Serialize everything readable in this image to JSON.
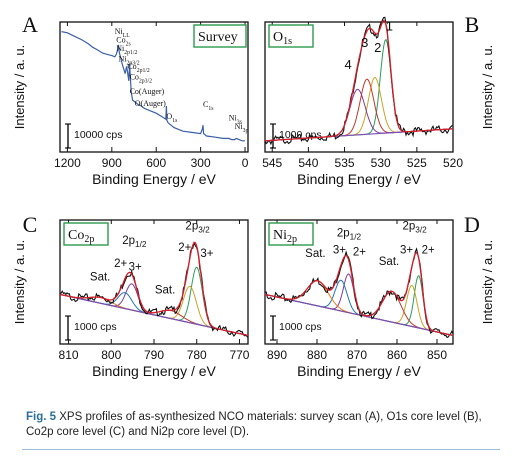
{
  "caption": {
    "label": "Fig. 5",
    "text": "XPS profiles of as-synthesized NCO materials: survey scan (A), O1s core level (B), Co2p core level (C) and Ni2p core level (D)."
  },
  "colors": {
    "survey": "#3a5fa8",
    "data": "#111111",
    "fit_envelope": "#d2202a",
    "baseline": "#7b4fb8",
    "box": "#2e9a4e",
    "peak_colors": [
      "#2f9d5b",
      "#c9a227",
      "#c0392b",
      "#7d3c98",
      "#1f77b4",
      "#e67e22"
    ]
  },
  "chart_data": [
    {
      "panel_letter": "A",
      "type": "line",
      "title": "Survey",
      "xlabel": "Binding Energy / eV",
      "ylabel": "Intensity / a. u.",
      "xlim": [
        1250,
        -20
      ],
      "xticks": [
        1200,
        900,
        600,
        300,
        0
      ],
      "scale_label": "10000 cps",
      "series": [
        {
          "x": [
            1240,
            1200,
            1150,
            1100,
            1060,
            1030,
            1000,
            960,
            930,
            900,
            880,
            870,
            860,
            855,
            850,
            830,
            810,
            800,
            795,
            785,
            780,
            770,
            760,
            740,
            720,
            700,
            680,
            640,
            600,
            560,
            535,
            531,
            528,
            520,
            480,
            420,
            360,
            300,
            288,
            284,
            280,
            260,
            200,
            150,
            120,
            110,
            90,
            70,
            60,
            40,
            20,
            0
          ],
          "y": [
            0.97,
            0.96,
            0.93,
            0.9,
            0.87,
            0.84,
            0.82,
            0.79,
            0.78,
            0.77,
            0.76,
            0.78,
            0.82,
            0.86,
            0.8,
            0.7,
            0.62,
            0.68,
            0.64,
            0.56,
            0.7,
            0.48,
            0.4,
            0.38,
            0.36,
            0.35,
            0.33,
            0.31,
            0.29,
            0.26,
            0.24,
            0.35,
            0.23,
            0.21,
            0.17,
            0.14,
            0.13,
            0.12,
            0.16,
            0.19,
            0.12,
            0.1,
            0.09,
            0.08,
            0.08,
            0.08,
            0.07,
            0.07,
            0.08,
            0.07,
            0.06,
            0.06
          ]
        }
      ],
      "annotations": [
        {
          "text": "Ni",
          "sub": "LL",
          "x": 880,
          "y": 0.95
        },
        {
          "text": "Co",
          "sub": "2s",
          "x": 870,
          "y": 0.88
        },
        {
          "text": "Ni",
          "sub": "2p1/2",
          "x": 870,
          "y": 0.81
        },
        {
          "text": "Ni",
          "sub": "2p3/2",
          "x": 855,
          "y": 0.72
        },
        {
          "text": "Co",
          "sub": "2p1/2",
          "x": 795,
          "y": 0.66
        },
        {
          "text": "Co",
          "sub": "2p3/2",
          "x": 780,
          "y": 0.57
        },
        {
          "text": "Co(Auger)",
          "sub": "",
          "x": 780,
          "y": 0.45
        },
        {
          "text": "O(Auger)",
          "sub": "",
          "x": 745,
          "y": 0.35
        },
        {
          "text": "O",
          "sub": "1s",
          "x": 531,
          "y": 0.24
        },
        {
          "text": "C",
          "sub": "1s",
          "x": 284,
          "y": 0.34
        },
        {
          "text": "Ni",
          "sub": "3s",
          "x": 110,
          "y": 0.23
        },
        {
          "text": "Ni",
          "sub": "3p",
          "x": 70,
          "y": 0.16
        }
      ]
    },
    {
      "panel_letter": "B",
      "type": "line",
      "title": "O",
      "title_sub": "1s",
      "xlabel": "Binding Energy / eV",
      "ylabel": "Intensity / a. u.",
      "xlim": [
        546,
        520
      ],
      "xticks": [
        545,
        540,
        535,
        530,
        525,
        520
      ],
      "scale_label": "1000 cps",
      "baseline": [
        0.06,
        0.16
      ],
      "peaks": [
        {
          "label": "1",
          "center": 529.3,
          "height": 0.78,
          "width": 0.75
        },
        {
          "label": "2",
          "center": 530.8,
          "height": 0.47,
          "width": 0.9
        },
        {
          "label": "3",
          "center": 531.9,
          "height": 0.46,
          "width": 0.95
        },
        {
          "label": "4",
          "center": 533.2,
          "height": 0.38,
          "width": 1.05
        }
      ],
      "peak_labels": [
        {
          "text": "1",
          "x": 528.8,
          "y": 0.98
        },
        {
          "text": "2",
          "x": 530.4,
          "y": 0.8
        },
        {
          "text": "3",
          "x": 532.2,
          "y": 0.84
        },
        {
          "text": "4",
          "x": 534.5,
          "y": 0.66
        }
      ]
    },
    {
      "panel_letter": "C",
      "type": "line",
      "title": "Co",
      "title_sub": "2p",
      "xlabel": "Binding Energy / eV",
      "ylabel": "Intensity / a. u.",
      "xlim": [
        812,
        768
      ],
      "xticks": [
        810,
        800,
        790,
        780,
        770
      ],
      "scale_label": "1000 cps",
      "baseline": [
        0.4,
        0.04
      ],
      "peaks": [
        {
          "label": "",
          "center": 780.0,
          "height": 0.5,
          "width": 1.3
        },
        {
          "label": "",
          "center": 781.6,
          "height": 0.32,
          "width": 1.5
        },
        {
          "label": "",
          "center": 786.0,
          "height": 0.07,
          "width": 2.5
        },
        {
          "label": "",
          "center": 795.2,
          "height": 0.23,
          "width": 1.4
        },
        {
          "label": "",
          "center": 796.8,
          "height": 0.14,
          "width": 1.6
        },
        {
          "label": "",
          "center": 802.5,
          "height": 0.05,
          "width": 2.5
        }
      ],
      "peak_labels": [
        {
          "text": "2p",
          "sub": "3/2",
          "x": 779.8,
          "y": 0.97
        },
        {
          "text": "2+",
          "x": 782.8,
          "y": 0.78
        },
        {
          "text": "3+",
          "x": 777.6,
          "y": 0.73
        },
        {
          "text": "2p",
          "sub": "1/2",
          "x": 794.6,
          "y": 0.84
        },
        {
          "text": "2+",
          "x": 797.8,
          "y": 0.64
        },
        {
          "text": "3+",
          "x": 794.4,
          "y": 0.61
        },
        {
          "text": "Sat.",
          "x": 802.6,
          "y": 0.52
        },
        {
          "text": "Sat.",
          "x": 787.4,
          "y": 0.41
        }
      ]
    },
    {
      "panel_letter": "D",
      "type": "line",
      "title": "Ni",
      "title_sub": "2p",
      "xlabel": "Binding Energy / eV",
      "ylabel": "Intensity / a. u.",
      "xlim": [
        893,
        846
      ],
      "xticks": [
        890,
        880,
        870,
        860,
        850
      ],
      "scale_label": "1000 cps",
      "baseline": [
        0.4,
        0.04
      ],
      "peaks": [
        {
          "label": "",
          "center": 854.6,
          "height": 0.46,
          "width": 1.1
        },
        {
          "label": "",
          "center": 856.3,
          "height": 0.36,
          "width": 1.3
        },
        {
          "label": "",
          "center": 861.3,
          "height": 0.27,
          "width": 2.3
        },
        {
          "label": "",
          "center": 872.1,
          "height": 0.34,
          "width": 1.3
        },
        {
          "label": "",
          "center": 874.0,
          "height": 0.27,
          "width": 1.5
        },
        {
          "label": "",
          "center": 879.8,
          "height": 0.22,
          "width": 2.6
        }
      ],
      "peak_labels": [
        {
          "text": "2p",
          "sub": "3/2",
          "x": 855.6,
          "y": 0.97
        },
        {
          "text": "3+",
          "x": 857.6,
          "y": 0.76
        },
        {
          "text": "2+",
          "x": 852.2,
          "y": 0.76
        },
        {
          "text": "Sat.",
          "x": 862.0,
          "y": 0.66
        },
        {
          "text": "2p",
          "sub": "1/2",
          "x": 872.0,
          "y": 0.91
        },
        {
          "text": "3+",
          "x": 874.4,
          "y": 0.76
        },
        {
          "text": "2+",
          "x": 869.4,
          "y": 0.74
        },
        {
          "text": "Sat.",
          "x": 880.4,
          "y": 0.73
        }
      ]
    }
  ]
}
